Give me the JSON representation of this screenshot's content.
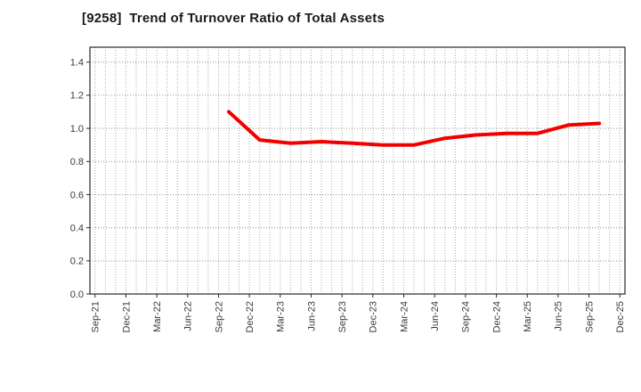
{
  "window": {
    "background": "#ffffff"
  },
  "colors": {
    "title_text": "#1a1a1a",
    "tick_text": "#3a3a3a",
    "axis_border": "#2a2a2a",
    "grid_horizontal": "#8f8f8f",
    "grid_vertical": "#a6a6a6",
    "series_red": "#f20000"
  },
  "chart_data": {
    "type": "line",
    "title": "[9258]  Trend of Turnover Ratio of Total Assets",
    "xlabel": "",
    "ylabel": "",
    "ylim": [
      0,
      1.49
    ],
    "y_tick_values": [
      0.0,
      0.2,
      0.4,
      0.6,
      0.8,
      1.0,
      1.2,
      1.4
    ],
    "y_tick_labels": [
      "0.0",
      "0.2",
      "0.4",
      "0.6",
      "0.8",
      "1.0",
      "1.2",
      "1.4"
    ],
    "x_axis_unit": "month",
    "total_months": 51,
    "months_per_tick": 3,
    "x_tick_labels": [
      "Sep-21",
      "Dec-21",
      "Mar-22",
      "Jun-22",
      "Sep-22",
      "Dec-22",
      "Mar-23",
      "Jun-23",
      "Sep-23",
      "Dec-23",
      "Mar-24",
      "Jun-24",
      "Sep-24",
      "Dec-24",
      "Mar-25",
      "Jun-25",
      "Sep-25",
      "Dec-25"
    ],
    "grid": {
      "horizontal": "dotted every 0.2",
      "vertical": "dotted every month"
    },
    "legend": "none",
    "series": [
      {
        "name": "Turnover Ratio of Total Assets",
        "color": "#f20000",
        "x_labels": [
          "Oct-22",
          "Jan-23",
          "Apr-23",
          "Jul-23",
          "Oct-23",
          "Jan-24",
          "Apr-24",
          "Jul-24",
          "Oct-24",
          "Jan-25",
          "Apr-25",
          "Jul-25",
          "Oct-25"
        ],
        "x_months": [
          13,
          16,
          19,
          22,
          25,
          28,
          31,
          34,
          37,
          40,
          43,
          46,
          49
        ],
        "values": [
          1.1,
          0.93,
          0.91,
          0.92,
          0.91,
          0.9,
          0.9,
          0.94,
          0.96,
          0.97,
          0.97,
          1.02,
          1.03
        ]
      }
    ]
  }
}
